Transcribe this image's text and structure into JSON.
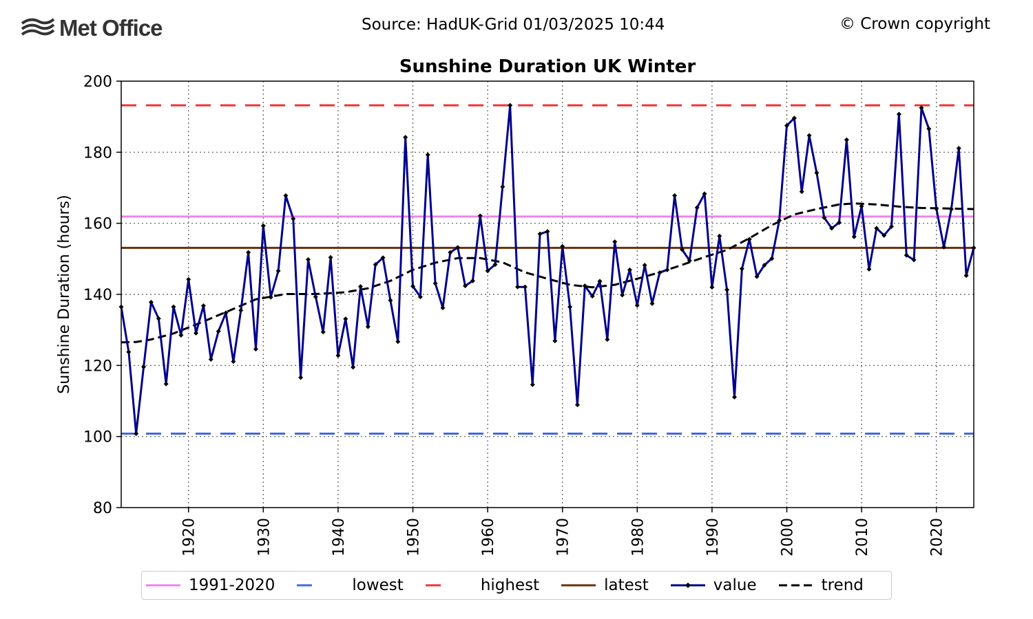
{
  "header": {
    "logo_text": "Met Office",
    "source": "Source: HadUK-Grid 01/03/2025 10:44",
    "copyright": "© Crown copyright"
  },
  "colors": {
    "baseline": "#ee82ee",
    "lowest": "#4169e1",
    "highest": "#ee3333",
    "latest": "#6b2f0a",
    "value": "#00008b",
    "marker": "#000000",
    "trend": "#000000"
  },
  "chart_data": {
    "type": "line",
    "title": "Sunshine Duration UK Winter",
    "ylabel": "Sunshine Duration (hours)",
    "xlabel": "",
    "xlim": [
      1911,
      2025
    ],
    "ylim": [
      80,
      200
    ],
    "x_ticks": [
      1920,
      1930,
      1940,
      1950,
      1960,
      1970,
      1980,
      1990,
      2000,
      2010,
      2020
    ],
    "y_ticks": [
      80,
      100,
      120,
      140,
      160,
      180,
      200
    ],
    "grid": true,
    "legend_position": "bottom",
    "reference_lines": {
      "baseline_1991_2020": 161.9,
      "lowest": 100.8,
      "highest": 193.2,
      "latest": 153.1
    },
    "legend": [
      "1991-2020",
      "lowest",
      "highest",
      "latest",
      "value",
      "trend"
    ],
    "series": [
      {
        "name": "value",
        "start_year": 1911,
        "values": [
          136.5,
          123.8,
          100.8,
          119.6,
          137.8,
          133.2,
          114.8,
          136.5,
          128.5,
          144.2,
          129.1,
          136.8,
          121.7,
          129.6,
          134.8,
          121.1,
          135.5,
          151.8,
          124.6,
          159.3,
          139.2,
          146.6,
          167.8,
          161.3,
          116.6,
          149.8,
          139.3,
          129.4,
          150.4,
          122.8,
          133.1,
          119.5,
          142.2,
          130.9,
          148.4,
          150.3,
          138.3,
          126.7,
          184.2,
          142.3,
          139.3,
          179.3,
          143.1,
          136.2,
          151.8,
          153.2,
          142.4,
          143.8,
          162.1,
          146.6,
          148.4,
          170.3,
          193.2,
          142.1,
          142.1,
          114.6,
          157.0,
          157.7,
          126.9,
          153.5,
          136.5,
          108.9,
          142.4,
          139.5,
          143.7,
          127.3,
          154.8,
          139.8,
          146.9,
          136.9,
          148.2,
          137.4,
          146.1,
          146.9,
          167.8,
          152.6,
          149.5,
          164.4,
          168.3,
          142.0,
          156.4,
          141.3,
          111.1,
          147.2,
          155.5,
          145.0,
          148.2,
          150.1,
          160.8,
          187.5,
          189.6,
          168.9,
          184.7,
          174.2,
          161.6,
          158.6,
          160.2,
          183.5,
          156.2,
          164.8,
          147.1,
          158.6,
          156.6,
          159.1,
          190.7,
          151.0,
          149.7,
          192.5,
          186.6,
          164.1,
          153.3,
          164.0,
          181.1,
          145.3,
          153.1
        ]
      },
      {
        "name": "trend",
        "x": [
          1911,
          1913,
          1915,
          1918,
          1921,
          1925,
          1929,
          1933,
          1937,
          1941,
          1944,
          1947,
          1950,
          1953,
          1956,
          1959,
          1962,
          1965,
          1968,
          1971,
          1974,
          1977,
          1980,
          1983,
          1986,
          1989,
          1992,
          1995,
          1998,
          2001,
          2004,
          2007,
          2009,
          2012,
          2015,
          2018,
          2021,
          2025
        ],
        "values": [
          126.5,
          126.6,
          127.3,
          129.0,
          131.5,
          135.0,
          138.6,
          140.1,
          140.1,
          140.6,
          141.7,
          143.8,
          146.9,
          148.9,
          150.2,
          150.2,
          149.0,
          146.2,
          144.4,
          142.7,
          142.0,
          142.7,
          144.4,
          146.2,
          148.3,
          150.5,
          152.5,
          155.8,
          159.5,
          162.5,
          164.0,
          165.3,
          165.6,
          165.3,
          164.7,
          164.3,
          164.2,
          164.0
        ]
      }
    ]
  },
  "legend_labels": {
    "baseline": "1991-2020",
    "lowest": "lowest",
    "highest": "highest",
    "latest": "latest",
    "value": "value",
    "trend": "trend"
  }
}
